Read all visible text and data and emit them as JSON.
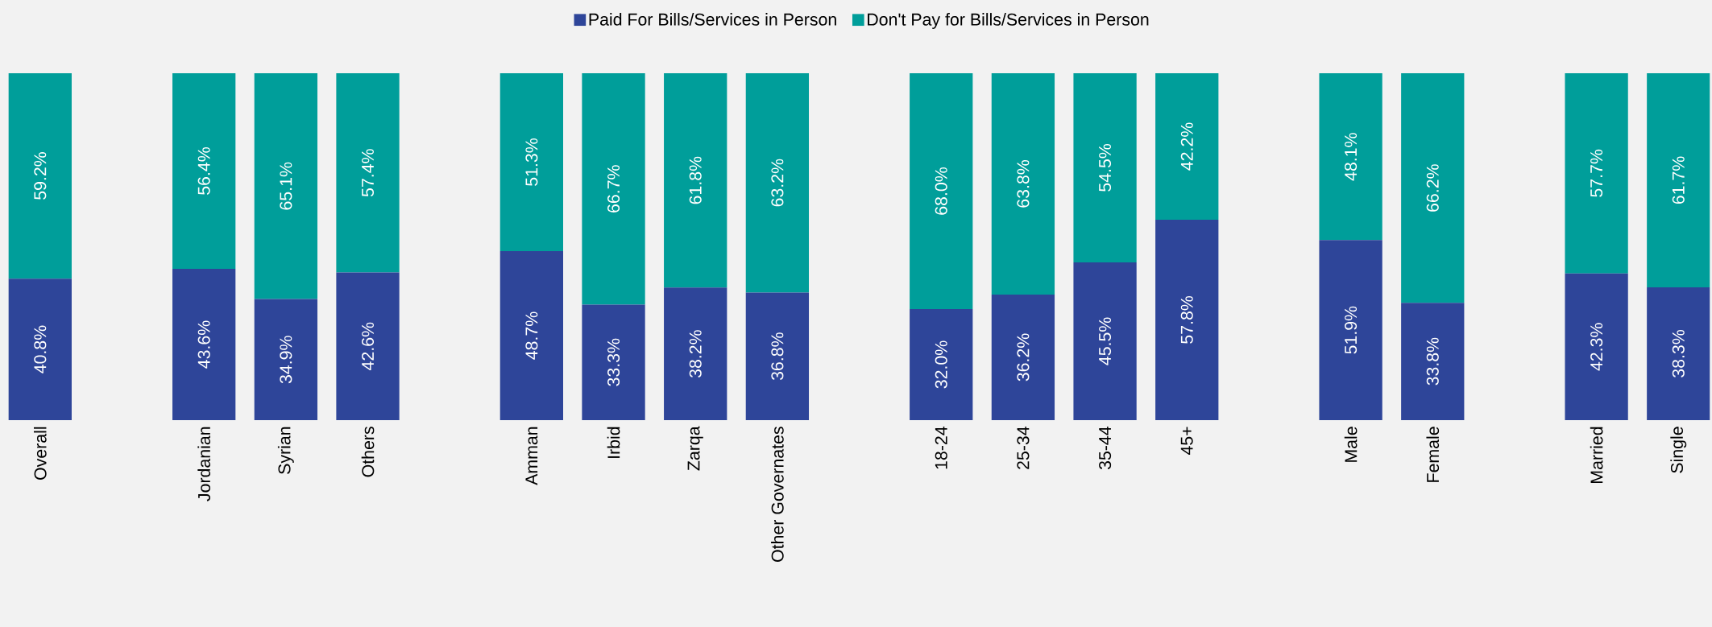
{
  "chart_data": {
    "type": "bar",
    "stacked": true,
    "legend": "top",
    "categories": [
      "Overall",
      null,
      "Jordanian",
      "Syrian",
      "Others",
      null,
      "Amman",
      "Irbid",
      "Zarqa",
      "Other Governates",
      null,
      "18-24",
      "25-34",
      "35-44",
      "45+",
      null,
      "Male",
      "Female",
      null,
      "Married",
      "Single"
    ],
    "series": [
      {
        "name": "Paid For Bills/Services in Person",
        "color": "#2e4599",
        "values": [
          40.8,
          null,
          43.6,
          34.9,
          42.6,
          null,
          48.7,
          33.3,
          38.2,
          36.8,
          null,
          32.0,
          36.2,
          45.5,
          57.8,
          null,
          51.9,
          33.8,
          null,
          42.3,
          38.3
        ],
        "value_labels": [
          "40.8%",
          null,
          "43.6%",
          "34.9%",
          "42.6%",
          null,
          "48.7%",
          "33.3%",
          "38.2%",
          "36.8%",
          null,
          "32.0%",
          "36.2%",
          "45.5%",
          "57.8%",
          null,
          "51.9%",
          "33.8%",
          null,
          "42.3%",
          "38.3%"
        ]
      },
      {
        "name": "Don't Pay for Bills/Services in Person",
        "color": "#009e9a",
        "values": [
          59.2,
          null,
          56.4,
          65.1,
          57.4,
          null,
          51.3,
          66.7,
          61.8,
          63.2,
          null,
          68.0,
          63.8,
          54.5,
          42.2,
          null,
          48.1,
          66.2,
          null,
          57.7,
          61.7
        ],
        "value_labels": [
          "59.2%",
          null,
          "56.4%",
          "65.1%",
          "57.4%",
          null,
          "51.3%",
          "66.7%",
          "61.8%",
          "63.2%",
          null,
          "68.0%",
          "63.8%",
          "54.5%",
          "42.2%",
          null,
          "48.1%",
          "66.2%",
          null,
          "57.7%",
          "61.7%"
        ]
      }
    ]
  }
}
